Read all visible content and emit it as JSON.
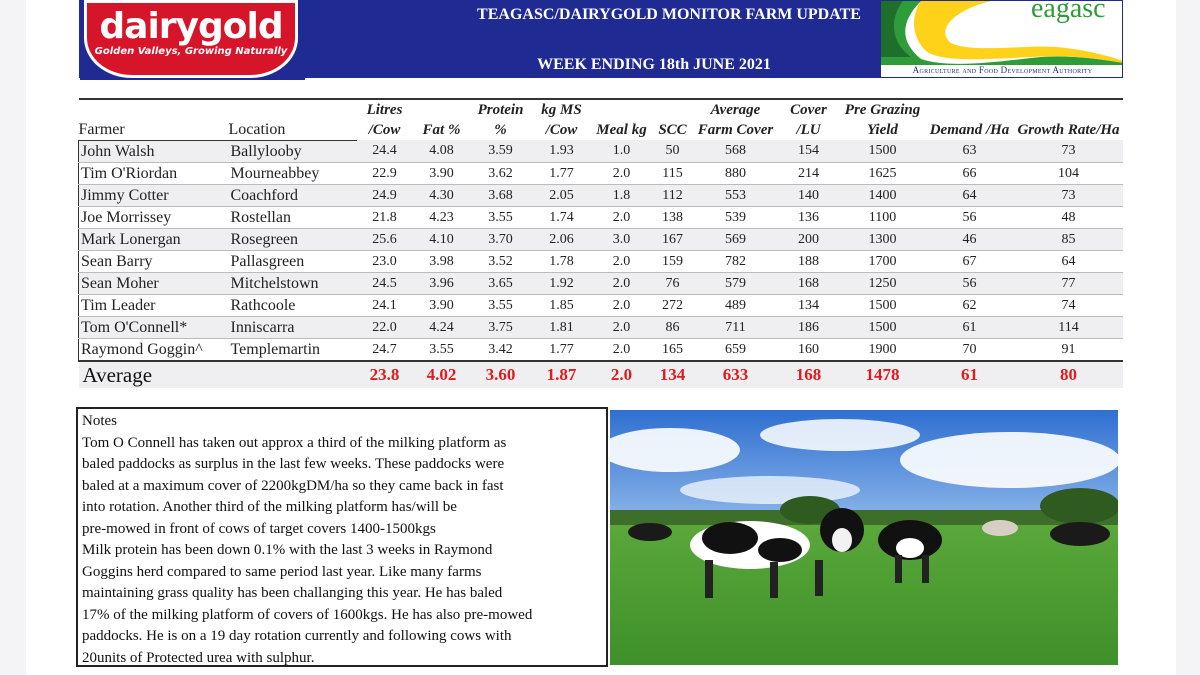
{
  "header": {
    "title": "TEAGASC/DAIRYGOLD MONITOR FARM UPDATE",
    "week": "WEEK ENDING 18th JUNE 2021",
    "dairygold_wordmark": "dairygold",
    "dairygold_tagline": "Golden Valleys, Growing Naturally",
    "teagasc_wordmark": "eagasc",
    "teagasc_authority": "Agriculture and Food Development Authority",
    "colors": {
      "navy": "#1f2b93",
      "red": "#d7152a",
      "green": "#2f9c3a"
    }
  },
  "table": {
    "columns": [
      "Farmer",
      "Location",
      "Litres /Cow",
      "Fat %",
      "Protein %",
      "kg MS /Cow",
      "Meal kg",
      "SCC",
      "Average Farm Cover",
      "Cover /LU",
      "Pre Grazing Yield",
      "Demand /Ha",
      "Growth Rate/Ha"
    ],
    "rows": [
      [
        "John Walsh",
        "Ballylooby",
        "24.4",
        "4.08",
        "3.59",
        "1.93",
        "1.0",
        "50",
        "568",
        "154",
        "1500",
        "63",
        "73"
      ],
      [
        "Tim O'Riordan",
        "Mourneabbey",
        "22.9",
        "3.90",
        "3.62",
        "1.77",
        "2.0",
        "115",
        "880",
        "214",
        "1625",
        "66",
        "104"
      ],
      [
        "Jimmy Cotter",
        "Coachford",
        "24.9",
        "4.30",
        "3.68",
        "2.05",
        "1.8",
        "112",
        "553",
        "140",
        "1400",
        "64",
        "73"
      ],
      [
        "Joe Morrissey",
        "Rostellan",
        "21.8",
        "4.23",
        "3.55",
        "1.74",
        "2.0",
        "138",
        "539",
        "136",
        "1100",
        "56",
        "48"
      ],
      [
        "Mark Lonergan",
        "Rosegreen",
        "25.6",
        "4.10",
        "3.70",
        "2.06",
        "3.0",
        "167",
        "569",
        "200",
        "1300",
        "46",
        "85"
      ],
      [
        "Sean Barry",
        "Pallasgreen",
        "23.0",
        "3.98",
        "3.52",
        "1.78",
        "2.0",
        "159",
        "782",
        "188",
        "1700",
        "67",
        "64"
      ],
      [
        "Sean Moher",
        "Mitchelstown",
        "24.5",
        "3.96",
        "3.65",
        "1.92",
        "2.0",
        "76",
        "579",
        "168",
        "1250",
        "56",
        "77"
      ],
      [
        "Tim Leader",
        "Rathcoole",
        "24.1",
        "3.90",
        "3.55",
        "1.85",
        "2.0",
        "272",
        "489",
        "134",
        "1500",
        "62",
        "74"
      ],
      [
        "Tom O'Connell*",
        "Inniscarra",
        "22.0",
        "4.24",
        "3.75",
        "1.81",
        "2.0",
        "86",
        "711",
        "186",
        "1500",
        "61",
        "114"
      ],
      [
        "Raymond Goggin^",
        "Templemartin",
        "24.7",
        "3.55",
        "3.42",
        "1.77",
        "2.0",
        "165",
        "659",
        "160",
        "1900",
        "70",
        "91"
      ]
    ],
    "average": [
      "Average",
      "23.8",
      "4.02",
      "3.60",
      "1.87",
      "2.0",
      "134",
      "633",
      "168",
      "1478",
      "61",
      "80"
    ]
  },
  "notes": {
    "title": "Notes",
    "lines": [
      "Tom O Connell has taken out approx a third of the milking platform as",
      "baled paddocks as surplus in the last few weeks. These paddocks were",
      "baled at a maximum cover of 2200kgDM/ha so they came back in fast",
      "into rotation.  Another third of the milking platform has/will be",
      "pre-mowed in front of cows of target covers 1400-1500kgs",
      "Milk protein has been down 0.1% with the last 3 weeks in Raymond",
      "Goggins herd compared to same period last year.  Like many farms",
      "maintaining grass quality has been challanging this year.  He has baled",
      "17% of the milking platform of covers of 1600kgs.  He has also pre-mowed",
      "paddocks.  He is on a 19 day rotation currently and following cows with",
      "20units of Protected urea with sulphur."
    ]
  }
}
